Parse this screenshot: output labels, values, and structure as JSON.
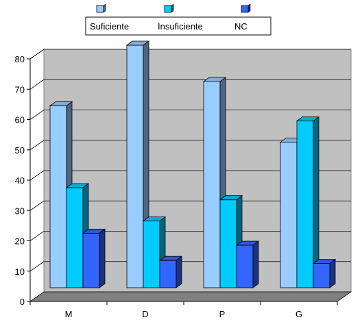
{
  "chart_data": {
    "type": "bar",
    "categories": [
      "M",
      "D",
      "P",
      "G"
    ],
    "series": [
      {
        "name": "Suficiente",
        "values": [
          60,
          80,
          68,
          48
        ],
        "color": "#99ccff"
      },
      {
        "name": "Insuficiente",
        "values": [
          33,
          22,
          29,
          55
        ],
        "color": "#00ccff"
      },
      {
        "name": "NC",
        "values": [
          18,
          9,
          14,
          8
        ],
        "color": "#3366ff"
      }
    ],
    "ylim": [
      0,
      80
    ],
    "yticks": [
      0,
      10,
      20,
      30,
      40,
      50,
      60,
      70,
      80
    ],
    "grid": true,
    "style": "3d",
    "legend_position": "top",
    "wall_color": "#c0c0c0",
    "floor_color": "#808080"
  }
}
